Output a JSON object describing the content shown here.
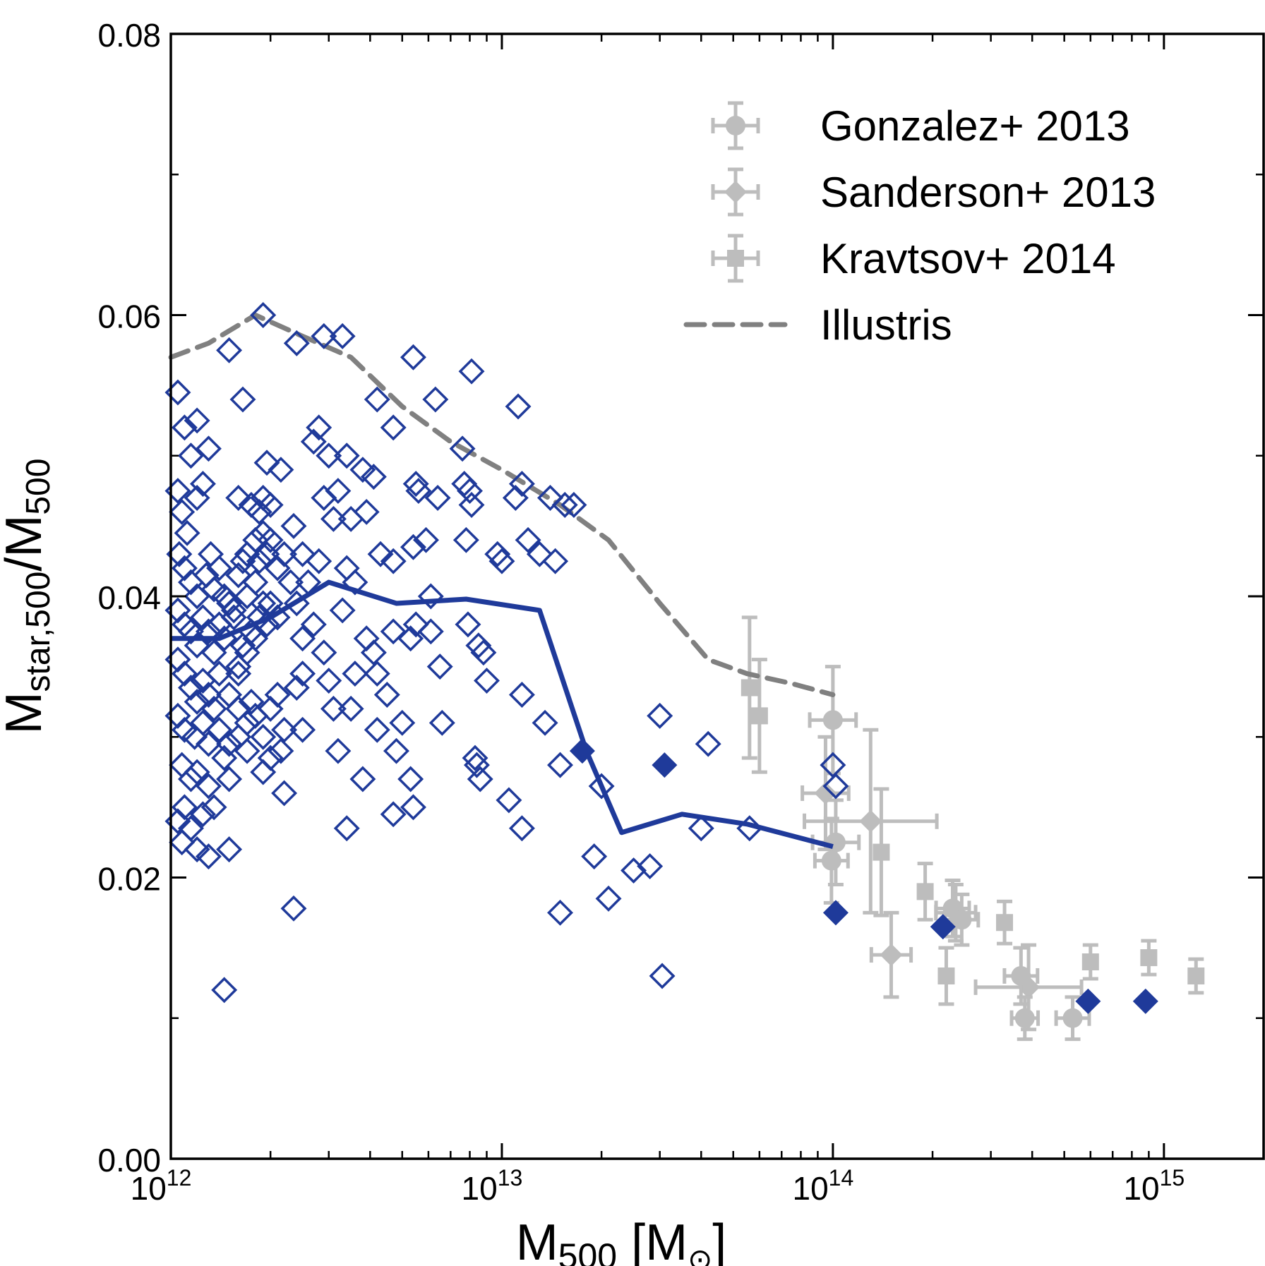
{
  "chart_data": {
    "type": "scatter",
    "xscale": "log",
    "xlim": [
      1000000000000.0,
      2000000000000000.0
    ],
    "ylim": [
      0.0,
      0.08
    ],
    "xlabel": "M500 [M⊙]",
    "ylabel": "Mstar,500/M500",
    "grid": false,
    "legend_position": "top-right",
    "x_tick_labels": [
      {
        "value": 1000000000000.0,
        "base": "10",
        "exp": "12"
      },
      {
        "value": 10000000000000.0,
        "base": "10",
        "exp": "13"
      },
      {
        "value": 100000000000000.0,
        "base": "10",
        "exp": "14"
      },
      {
        "value": 1000000000000000.0,
        "base": "10",
        "exp": "15"
      }
    ],
    "y_tick_labels": [
      "0.00",
      "0.02",
      "0.04",
      "0.06",
      "0.08"
    ],
    "colors": {
      "simulation": "#1f3a9a",
      "observations": "#bdbdbd",
      "illustris": "#808080"
    },
    "legend": [
      {
        "label": "Gonzalez+ 2013",
        "marker": "circle"
      },
      {
        "label": "Sanderson+ 2013",
        "marker": "diamond"
      },
      {
        "label": "Kravtsov+ 2014",
        "marker": "square"
      },
      {
        "label": "Illustris",
        "marker": "dashed-line"
      }
    ],
    "simulation_open": [
      [
        1050000000000.0,
        0.0545
      ],
      [
        1100000000000.0,
        0.052
      ],
      [
        1200000000000.0,
        0.0525
      ],
      [
        1150000000000.0,
        0.05
      ],
      [
        1300000000000.0,
        0.0505
      ],
      [
        1050000000000.0,
        0.0475
      ],
      [
        1080000000000.0,
        0.046
      ],
      [
        1120000000000.0,
        0.0445
      ],
      [
        1200000000000.0,
        0.047
      ],
      [
        1250000000000.0,
        0.048
      ],
      [
        1060000000000.0,
        0.043
      ],
      [
        1100000000000.0,
        0.042
      ],
      [
        1150000000000.0,
        0.041
      ],
      [
        1200000000000.0,
        0.04
      ],
      [
        1280000000000.0,
        0.0415
      ],
      [
        1320000000000.0,
        0.043
      ],
      [
        1350000000000.0,
        0.0405
      ],
      [
        1400000000000.0,
        0.042
      ],
      [
        1450000000000.0,
        0.04
      ],
      [
        1500000000000.0,
        0.0395
      ],
      [
        1050000000000.0,
        0.039
      ],
      [
        1100000000000.0,
        0.038
      ],
      [
        1150000000000.0,
        0.0375
      ],
      [
        1200000000000.0,
        0.0365
      ],
      [
        1250000000000.0,
        0.0385
      ],
      [
        1300000000000.0,
        0.0375
      ],
      [
        1350000000000.0,
        0.036
      ],
      [
        1400000000000.0,
        0.038
      ],
      [
        1450000000000.0,
        0.037
      ],
      [
        1550000000000.0,
        0.0385
      ],
      [
        1050000000000.0,
        0.0355
      ],
      [
        1100000000000.0,
        0.0345
      ],
      [
        1150000000000.0,
        0.0335
      ],
      [
        1200000000000.0,
        0.0325
      ],
      [
        1250000000000.0,
        0.034
      ],
      [
        1300000000000.0,
        0.033
      ],
      [
        1350000000000.0,
        0.032
      ],
      [
        1400000000000.0,
        0.0345
      ],
      [
        1500000000000.0,
        0.033
      ],
      [
        1600000000000.0,
        0.0345
      ],
      [
        1050000000000.0,
        0.0315
      ],
      [
        1100000000000.0,
        0.0305
      ],
      [
        1180000000000.0,
        0.03
      ],
      [
        1250000000000.0,
        0.031
      ],
      [
        1300000000000.0,
        0.0295
      ],
      [
        1400000000000.0,
        0.0305
      ],
      [
        1500000000000.0,
        0.0295
      ],
      [
        1600000000000.0,
        0.03
      ],
      [
        1700000000000.0,
        0.029
      ],
      [
        1450000000000.0,
        0.0285
      ],
      [
        1080000000000.0,
        0.028
      ],
      [
        1150000000000.0,
        0.027
      ],
      [
        1200000000000.0,
        0.0275
      ],
      [
        1300000000000.0,
        0.0265
      ],
      [
        1500000000000.0,
        0.027
      ],
      [
        1100000000000.0,
        0.025
      ],
      [
        1250000000000.0,
        0.0245
      ],
      [
        1350000000000.0,
        0.025
      ],
      [
        1050000000000.0,
        0.024
      ],
      [
        1150000000000.0,
        0.0235
      ],
      [
        1080000000000.0,
        0.0225
      ],
      [
        1200000000000.0,
        0.022
      ],
      [
        1300000000000.0,
        0.0215
      ],
      [
        1500000000000.0,
        0.022
      ],
      [
        1600000000000.0,
        0.035
      ],
      [
        1650000000000.0,
        0.0365
      ],
      [
        1700000000000.0,
        0.036
      ],
      [
        1750000000000.0,
        0.0375
      ],
      [
        1800000000000.0,
        0.037
      ],
      [
        1850000000000.0,
        0.0385
      ],
      [
        1900000000000.0,
        0.0395
      ],
      [
        1950000000000.0,
        0.038
      ],
      [
        2000000000000.0,
        0.0395
      ],
      [
        2100000000000.0,
        0.0385
      ],
      [
        1600000000000.0,
        0.0415
      ],
      [
        1650000000000.0,
        0.0425
      ],
      [
        1700000000000.0,
        0.043
      ],
      [
        1800000000000.0,
        0.044
      ],
      [
        1850000000000.0,
        0.0425
      ],
      [
        1900000000000.0,
        0.0445
      ],
      [
        1950000000000.0,
        0.043
      ],
      [
        2000000000000.0,
        0.044
      ],
      [
        2100000000000.0,
        0.042
      ],
      [
        2200000000000.0,
        0.043
      ],
      [
        1600000000000.0,
        0.047
      ],
      [
        1750000000000.0,
        0.0465
      ],
      [
        1850000000000.0,
        0.046
      ],
      [
        1900000000000.0,
        0.047
      ],
      [
        2000000000000.0,
        0.0465
      ],
      [
        1550000000000.0,
        0.039
      ],
      [
        1700000000000.0,
        0.04
      ],
      [
        1800000000000.0,
        0.041
      ],
      [
        2300000000000.0,
        0.041
      ],
      [
        2400000000000.0,
        0.0395
      ],
      [
        1600000000000.0,
        0.032
      ],
      [
        1700000000000.0,
        0.031
      ],
      [
        1750000000000.0,
        0.0325
      ],
      [
        1800000000000.0,
        0.0315
      ],
      [
        1900000000000.0,
        0.03
      ],
      [
        2000000000000.0,
        0.032
      ],
      [
        2100000000000.0,
        0.033
      ],
      [
        2200000000000.0,
        0.0305
      ],
      [
        1900000000000.0,
        0.0275
      ],
      [
        2000000000000.0,
        0.0285
      ],
      [
        2150000000000.0,
        0.029
      ],
      [
        2200000000000.0,
        0.026
      ],
      [
        2400000000000.0,
        0.0335
      ],
      [
        2500000000000.0,
        0.037
      ],
      [
        2500000000000.0,
        0.0345
      ],
      [
        2500000000000.0,
        0.0305
      ],
      [
        1500000000000.0,
        0.0575
      ],
      [
        1650000000000.0,
        0.054
      ],
      [
        1900000000000.0,
        0.06
      ],
      [
        2400000000000.0,
        0.058
      ],
      [
        2900000000000.0,
        0.0585
      ],
      [
        3300000000000.0,
        0.0585
      ],
      [
        1950000000000.0,
        0.0495
      ],
      [
        2150000000000.0,
        0.049
      ],
      [
        2350000000000.0,
        0.045
      ],
      [
        2500000000000.0,
        0.043
      ],
      [
        2600000000000.0,
        0.041
      ],
      [
        2700000000000.0,
        0.038
      ],
      [
        2800000000000.0,
        0.052
      ],
      [
        2700000000000.0,
        0.051
      ],
      [
        2900000000000.0,
        0.047
      ],
      [
        3000000000000.0,
        0.05
      ],
      [
        3100000000000.0,
        0.0455
      ],
      [
        3200000000000.0,
        0.0475
      ],
      [
        3400000000000.0,
        0.05
      ],
      [
        3500000000000.0,
        0.0455
      ],
      [
        2800000000000.0,
        0.0425
      ],
      [
        2900000000000.0,
        0.036
      ],
      [
        3000000000000.0,
        0.034
      ],
      [
        3100000000000.0,
        0.032
      ],
      [
        3400000000000.0,
        0.042
      ],
      [
        3600000000000.0,
        0.041
      ],
      [
        3300000000000.0,
        0.039
      ],
      [
        3500000000000.0,
        0.032
      ],
      [
        3600000000000.0,
        0.0345
      ],
      [
        3800000000000.0,
        0.049
      ],
      [
        3900000000000.0,
        0.046
      ],
      [
        4100000000000.0,
        0.0485
      ],
      [
        4200000000000.0,
        0.054
      ],
      [
        4700000000000.0,
        0.052
      ],
      [
        3900000000000.0,
        0.037
      ],
      [
        4100000000000.0,
        0.036
      ],
      [
        4200000000000.0,
        0.0345
      ],
      [
        4500000000000.0,
        0.033
      ],
      [
        4700000000000.0,
        0.0375
      ],
      [
        4300000000000.0,
        0.043
      ],
      [
        4700000000000.0,
        0.0425
      ],
      [
        5300000000000.0,
        0.037
      ],
      [
        3200000000000.0,
        0.029
      ],
      [
        3800000000000.0,
        0.027
      ],
      [
        4200000000000.0,
        0.0305
      ],
      [
        4800000000000.0,
        0.029
      ],
      [
        4700000000000.0,
        0.0245
      ],
      [
        3400000000000.0,
        0.0235
      ],
      [
        5400000000000.0,
        0.025
      ],
      [
        5300000000000.0,
        0.027
      ],
      [
        5000000000000.0,
        0.031
      ],
      [
        5400000000000.0,
        0.057
      ],
      [
        5500000000000.0,
        0.048
      ],
      [
        5600000000000.0,
        0.0475
      ],
      [
        5400000000000.0,
        0.0435
      ],
      [
        5900000000000.0,
        0.044
      ],
      [
        5500000000000.0,
        0.038
      ],
      [
        6100000000000.0,
        0.0375
      ],
      [
        6100000000000.0,
        0.04
      ],
      [
        6300000000000.0,
        0.054
      ],
      [
        6400000000000.0,
        0.047
      ],
      [
        6500000000000.0,
        0.035
      ],
      [
        6600000000000.0,
        0.031
      ],
      [
        7600000000000.0,
        0.0505
      ],
      [
        7700000000000.0,
        0.048
      ],
      [
        8000000000000.0,
        0.0475
      ],
      [
        8100000000000.0,
        0.0465
      ],
      [
        7800000000000.0,
        0.044
      ],
      [
        8100000000000.0,
        0.056
      ],
      [
        7900000000000.0,
        0.038
      ],
      [
        8500000000000.0,
        0.0365
      ],
      [
        8800000000000.0,
        0.036
      ],
      [
        9000000000000.0,
        0.034
      ],
      [
        8300000000000.0,
        0.0285
      ],
      [
        8400000000000.0,
        0.028
      ],
      [
        8600000000000.0,
        0.027
      ],
      [
        9700000000000.0,
        0.043
      ],
      [
        10000000000000.0,
        0.0425
      ],
      [
        10500000000000.0,
        0.0255
      ],
      [
        11000000000000.0,
        0.047
      ],
      [
        11500000000000.0,
        0.048
      ],
      [
        11500000000000.0,
        0.0235
      ],
      [
        11500000000000.0,
        0.033
      ],
      [
        11200000000000.0,
        0.0535
      ],
      [
        12000000000000.0,
        0.044
      ],
      [
        13000000000000.0,
        0.043
      ],
      [
        13500000000000.0,
        0.031
      ],
      [
        14000000000000.0,
        0.047
      ],
      [
        15500000000000.0,
        0.0465
      ],
      [
        14500000000000.0,
        0.0425
      ],
      [
        15000000000000.0,
        0.028
      ],
      [
        15000000000000.0,
        0.0175
      ],
      [
        16500000000000.0,
        0.0465
      ],
      [
        19000000000000.0,
        0.0215
      ],
      [
        20000000000000.0,
        0.0265
      ],
      [
        21000000000000.0,
        0.0185
      ],
      [
        25000000000000.0,
        0.0205
      ],
      [
        28000000000000.0,
        0.0208
      ],
      [
        30000000000000.0,
        0.0315
      ],
      [
        30500000000000.0,
        0.013
      ],
      [
        42000000000000.0,
        0.0295
      ],
      [
        40000000000000.0,
        0.0235
      ],
      [
        56000000000000.0,
        0.0235
      ],
      [
        102000000000000.0,
        0.0265
      ],
      [
        100000000000000.0,
        0.028
      ],
      [
        2350000000000.0,
        0.0178
      ],
      [
        1450000000000.0,
        0.012
      ]
    ],
    "simulation_filled": [
      [
        17500000000000.0,
        0.029
      ],
      [
        31000000000000.0,
        0.028
      ],
      [
        102000000000000.0,
        0.0175
      ],
      [
        215000000000000.0,
        0.0165
      ],
      [
        590000000000000.0,
        0.0112
      ],
      [
        880000000000000.0,
        0.0112
      ]
    ],
    "simulation_median": [
      [
        1000000000000.0,
        0.037
      ],
      [
        1400000000000.0,
        0.037
      ],
      [
        2000000000000.0,
        0.0385
      ],
      [
        3000000000000.0,
        0.041
      ],
      [
        4800000000000.0,
        0.0395
      ],
      [
        7800000000000.0,
        0.0398
      ],
      [
        13000000000000.0,
        0.039
      ],
      [
        18000000000000.0,
        0.029
      ],
      [
        23000000000000.0,
        0.0232
      ],
      [
        35000000000000.0,
        0.0245
      ],
      [
        55000000000000.0,
        0.0238
      ],
      [
        100000000000000.0,
        0.0222
      ]
    ],
    "illustris": [
      [
        1000000000000.0,
        0.057
      ],
      [
        1300000000000.0,
        0.058
      ],
      [
        1800000000000.0,
        0.06
      ],
      [
        2500000000000.0,
        0.0585
      ],
      [
        3500000000000.0,
        0.057
      ],
      [
        5000000000000.0,
        0.0535
      ],
      [
        7000000000000.0,
        0.051
      ],
      [
        10000000000000.0,
        0.049
      ],
      [
        15000000000000.0,
        0.0465
      ],
      [
        21000000000000.0,
        0.044
      ],
      [
        30000000000000.0,
        0.0395
      ],
      [
        42000000000000.0,
        0.0355
      ],
      [
        55000000000000.0,
        0.0345
      ],
      [
        75000000000000.0,
        0.0338
      ],
      [
        100000000000000.0,
        0.033
      ]
    ],
    "gonzalez": [
      {
        "x": 100000000000000.0,
        "y": 0.0312,
        "xerr": 0.07,
        "yerr": 0.0038
      },
      {
        "x": 102000000000000.0,
        "y": 0.0225,
        "xerr": 0.07,
        "yerr": 0.003
      },
      {
        "x": 99000000000000.0,
        "y": 0.0212,
        "xerr": 0.05,
        "yerr": 0.003
      },
      {
        "x": 230000000000000.0,
        "y": 0.0178,
        "xerr": 0.05,
        "yerr": 0.002
      },
      {
        "x": 245000000000000.0,
        "y": 0.017,
        "xerr": 0.05,
        "yerr": 0.0018
      },
      {
        "x": 370000000000000.0,
        "y": 0.013,
        "xerr": 0.05,
        "yerr": 0.002
      },
      {
        "x": 380000000000000.0,
        "y": 0.01,
        "xerr": 0.04,
        "yerr": 0.0015
      },
      {
        "x": 530000000000000.0,
        "y": 0.01,
        "xerr": 0.05,
        "yerr": 0.0015
      }
    ],
    "sanderson": [
      {
        "x": 95000000000000.0,
        "y": 0.026,
        "xerr": 0.07,
        "yerr": 0.004
      },
      {
        "x": 130000000000000.0,
        "y": 0.024,
        "xerr": 0.2,
        "yerr": 0.0065
      },
      {
        "x": 150000000000000.0,
        "y": 0.0145,
        "xerr": 0.06,
        "yerr": 0.003
      },
      {
        "x": 235000000000000.0,
        "y": 0.0175,
        "xerr": 0.06,
        "yerr": 0.002
      },
      {
        "x": 390000000000000.0,
        "y": 0.0122,
        "xerr": 0.16,
        "yerr": 0.003
      }
    ],
    "kravtsov": [
      {
        "x": 56000000000000.0,
        "y": 0.0335,
        "xerr": 0,
        "yerr": 0.005
      },
      {
        "x": 60000000000000.0,
        "y": 0.0315,
        "xerr": 0,
        "yerr": 0.004
      },
      {
        "x": 140000000000000.0,
        "y": 0.0218,
        "xerr": 0,
        "yerr": 0.0045
      },
      {
        "x": 190000000000000.0,
        "y": 0.019,
        "xerr": 0,
        "yerr": 0.002
      },
      {
        "x": 220000000000000.0,
        "y": 0.013,
        "xerr": 0,
        "yerr": 0.002
      },
      {
        "x": 330000000000000.0,
        "y": 0.0168,
        "xerr": 0,
        "yerr": 0.0015
      },
      {
        "x": 600000000000000.0,
        "y": 0.014,
        "xerr": 0,
        "yerr": 0.0012
      },
      {
        "x": 900000000000000.0,
        "y": 0.0143,
        "xerr": 0,
        "yerr": 0.0012
      },
      {
        "x": 1250000000000000.0,
        "y": 0.013,
        "xerr": 0,
        "yerr": 0.0012
      }
    ]
  }
}
